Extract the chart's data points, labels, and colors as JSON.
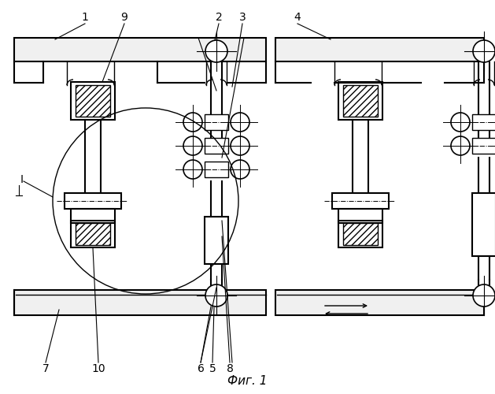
{
  "bg": "#ffffff",
  "lc": "#000000",
  "fig_title": "Фиг. 1",
  "lw_main": 1.5,
  "lw_thin": 1.0,
  "lw_leader": 0.8
}
